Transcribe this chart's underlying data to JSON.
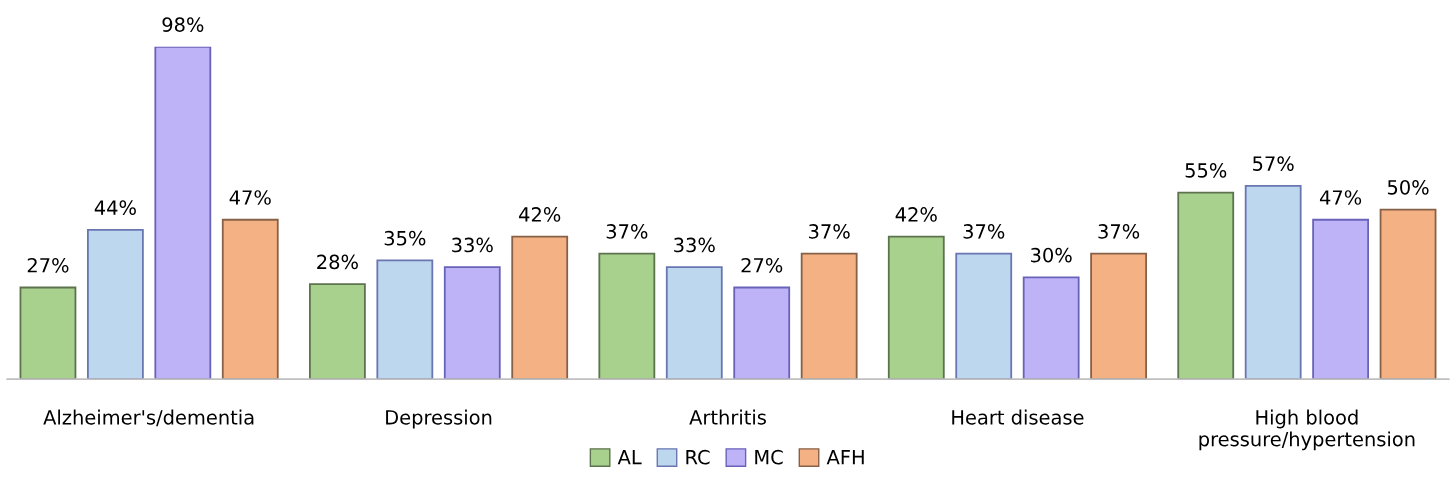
{
  "chart_data": {
    "type": "bar",
    "categories": [
      "Alzheimer's/dementia",
      "Depression",
      "Arthritis",
      "Heart disease",
      "High blood\npressure/hypertension"
    ],
    "series": [
      {
        "name": "AL",
        "color": "#a9d18e",
        "values": [
          27,
          28,
          37,
          42,
          55
        ],
        "value_labels": [
          "27%",
          "28%",
          "37%",
          "42%",
          "55%"
        ]
      },
      {
        "name": "RC",
        "color": "#bdd7ee",
        "values": [
          44,
          35,
          33,
          37,
          57
        ],
        "value_labels": [
          "44%",
          "35%",
          "33%",
          "37%",
          "57%"
        ]
      },
      {
        "name": "MC",
        "color": "#bfb3f7",
        "values": [
          98,
          33,
          27,
          30,
          47
        ],
        "value_labels": [
          "98%",
          "33%",
          "27%",
          "30%",
          "47%"
        ]
      },
      {
        "name": "AFH",
        "color": "#f4b183",
        "values": [
          47,
          42,
          37,
          37,
          50
        ],
        "value_labels": [
          "47%",
          "42%",
          "37%",
          "37%",
          "50%"
        ]
      }
    ],
    "legend": "bottom",
    "tick_labels": "x"
  }
}
